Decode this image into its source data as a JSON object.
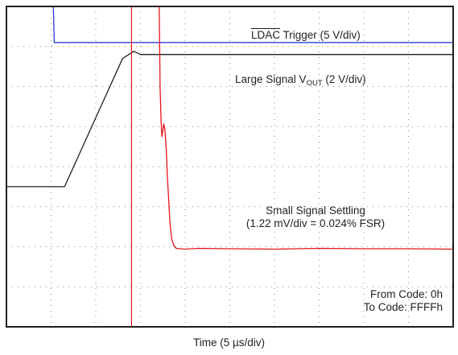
{
  "chart_data": {
    "type": "line",
    "xlabel": "Time (5 µs/div)",
    "xlabel_parts": [
      "Time",
      "(5 µs/div)"
    ],
    "grid": true,
    "grid_style": "dotted",
    "divisions": {
      "x": 10,
      "y": 8
    },
    "annotations": {
      "trigger": {
        "prefix": "LDAC",
        "suffix": "Trigger (5 V/div)"
      },
      "vout": {
        "main": "Large Signal V",
        "sub": "OUT",
        "tail": "(2 V/div)"
      },
      "small_signal": [
        "Small Signal Settling",
        "(1.22 mV/div = 0.024% FSR)"
      ],
      "code": [
        "From Code: 0h",
        "To Code: FFFFh"
      ]
    },
    "series": [
      {
        "key": "ldac",
        "color": "#2b3dd8",
        "x": [
          0,
          1.05,
          1.07,
          10
        ],
        "y": [
          8.0,
          8.0,
          7.1,
          7.1
        ]
      },
      {
        "key": "vout",
        "color": "#231f20",
        "x": [
          0,
          1.3,
          2.6,
          2.85,
          3.0,
          10
        ],
        "y": [
          3.5,
          3.5,
          6.7,
          6.88,
          6.8,
          6.8
        ]
      },
      {
        "key": "settling",
        "color": "#e8141b",
        "x": [
          3.42,
          3.44,
          3.46,
          3.48,
          3.5,
          3.52,
          3.55,
          3.58,
          3.6,
          3.63,
          3.66,
          3.7,
          3.75,
          3.8,
          3.88,
          4.0,
          4.3,
          5.0,
          6.0,
          7.0,
          8.0,
          9.0,
          10.0
        ],
        "y": [
          8.0,
          6.0,
          5.2,
          4.75,
          4.9,
          5.07,
          4.9,
          4.4,
          3.8,
          3.2,
          2.6,
          2.2,
          2.02,
          1.96,
          1.95,
          1.94,
          1.96,
          1.95,
          1.94,
          1.96,
          1.95,
          1.95,
          1.94
        ]
      },
      {
        "key": "trigger_marker",
        "color": "#e8141b",
        "x": [
          2.8,
          2.8
        ],
        "y": [
          0,
          8
        ]
      }
    ],
    "xlim": [
      0,
      10
    ],
    "ylim": [
      0,
      8
    ]
  }
}
